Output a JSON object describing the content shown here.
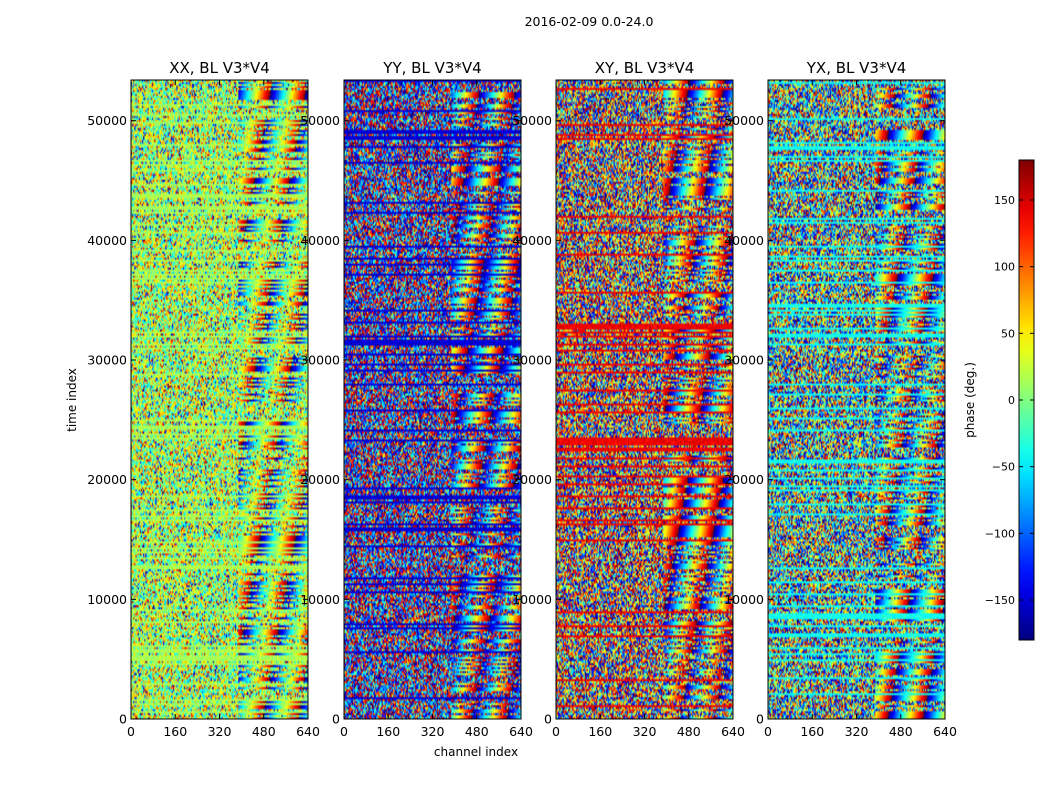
{
  "chart_data": {
    "type": "heatmap",
    "title": "2016-02-09 0.0-24.0",
    "xlabel": "channel index",
    "ylabel": "time index",
    "xlim": [
      0,
      640
    ],
    "ylim": [
      0,
      53400
    ],
    "xticks": [
      "0",
      "160",
      "320",
      "480",
      "640"
    ],
    "xtick_values": [
      0,
      160,
      320,
      480,
      640
    ],
    "yticks": [
      "0",
      "10000",
      "20000",
      "30000",
      "40000",
      "50000"
    ],
    "ytick_values": [
      0,
      10000,
      20000,
      30000,
      40000,
      50000
    ],
    "panels": [
      {
        "title": "XX, BL V3*V4",
        "polarization": "XX",
        "bias_phase": 15,
        "spread": 70
      },
      {
        "title": "YY, BL V3*V4",
        "polarization": "YY",
        "bias_phase": -150,
        "spread": 120
      },
      {
        "title": "XY, BL V3*V4",
        "polarization": "XY",
        "bias_phase": 140,
        "spread": 160
      },
      {
        "title": "YX, BL V3*V4",
        "polarization": "YX",
        "bias_phase": -40,
        "spread": 160
      }
    ],
    "colorbar": {
      "label": "phase (deg.)",
      "colormap": "jet",
      "range": [
        -180,
        180
      ],
      "ticks": [
        "150",
        "100",
        "50",
        "0",
        "−50",
        "−100",
        "−150"
      ],
      "tick_values": [
        150,
        100,
        50,
        0,
        -50,
        -100,
        -150
      ]
    }
  }
}
